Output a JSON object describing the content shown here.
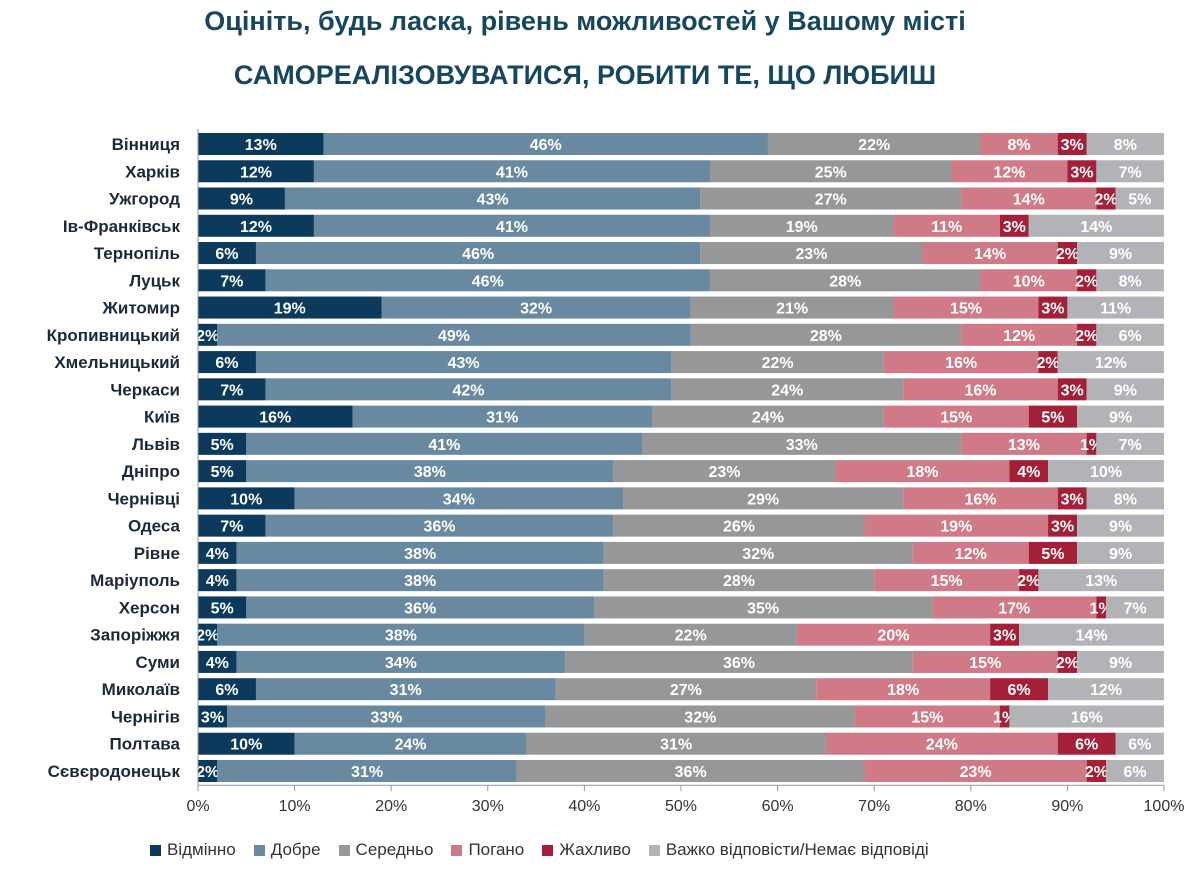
{
  "title_line1": "Оцініть, будь ласка, рівень можливостей у Вашому місті",
  "title_line2": "САМОРЕАЛІЗОВУВАТИСЯ, РОБИТИ ТЕ, ЩО ЛЮБИШ",
  "chart_data": {
    "type": "bar",
    "orientation": "horizontal",
    "stacked": true,
    "xlim": [
      0,
      100
    ],
    "x_ticks": [
      "0%",
      "10%",
      "20%",
      "30%",
      "40%",
      "50%",
      "60%",
      "70%",
      "80%",
      "90%",
      "100%"
    ],
    "legend_position": "bottom",
    "categories": [
      "Вінниця",
      "Харків",
      "Ужгород",
      "Ів-Франківськ",
      "Тернопіль",
      "Луцьк",
      "Житомир",
      "Кропивницький",
      "Хмельницький",
      "Черкаси",
      "Київ",
      "Львів",
      "Дніпро",
      "Чернівці",
      "Одеса",
      "Рівне",
      "Маріуполь",
      "Херсон",
      "Запоріжжя",
      "Суми",
      "Миколаїв",
      "Чернігів",
      "Полтава",
      "Сєвєродонецьк"
    ],
    "series": [
      {
        "name": "Відмінно",
        "color": "#0b3a5c",
        "values": [
          13,
          12,
          9,
          12,
          6,
          7,
          19,
          2,
          6,
          7,
          16,
          5,
          5,
          10,
          7,
          4,
          4,
          5,
          2,
          4,
          6,
          3,
          10,
          2
        ]
      },
      {
        "name": "Добре",
        "color": "#68899f",
        "values": [
          46,
          41,
          43,
          41,
          46,
          46,
          32,
          49,
          43,
          42,
          31,
          41,
          38,
          34,
          36,
          38,
          38,
          36,
          38,
          34,
          31,
          33,
          24,
          31
        ]
      },
      {
        "name": "Середньо",
        "color": "#959799",
        "values": [
          22,
          25,
          27,
          19,
          23,
          28,
          21,
          28,
          22,
          24,
          24,
          33,
          23,
          29,
          26,
          32,
          28,
          35,
          22,
          36,
          27,
          32,
          31,
          36
        ]
      },
      {
        "name": "Погано",
        "color": "#cf7a86",
        "values": [
          8,
          12,
          14,
          11,
          14,
          10,
          15,
          12,
          16,
          16,
          15,
          13,
          18,
          16,
          19,
          12,
          15,
          17,
          20,
          15,
          18,
          15,
          24,
          23
        ]
      },
      {
        "name": "Жахливо",
        "color": "#a41f38",
        "values": [
          3,
          3,
          2,
          3,
          2,
          2,
          3,
          2,
          2,
          3,
          5,
          1,
          4,
          3,
          3,
          5,
          2,
          1,
          3,
          2,
          6,
          1,
          6,
          2
        ]
      },
      {
        "name": "Важко відповісти/Немає відповіді",
        "color": "#b2b3b6",
        "values": [
          8,
          7,
          5,
          14,
          9,
          8,
          11,
          6,
          12,
          9,
          9,
          7,
          10,
          8,
          9,
          9,
          13,
          7,
          14,
          9,
          12,
          16,
          6,
          6
        ]
      }
    ]
  }
}
